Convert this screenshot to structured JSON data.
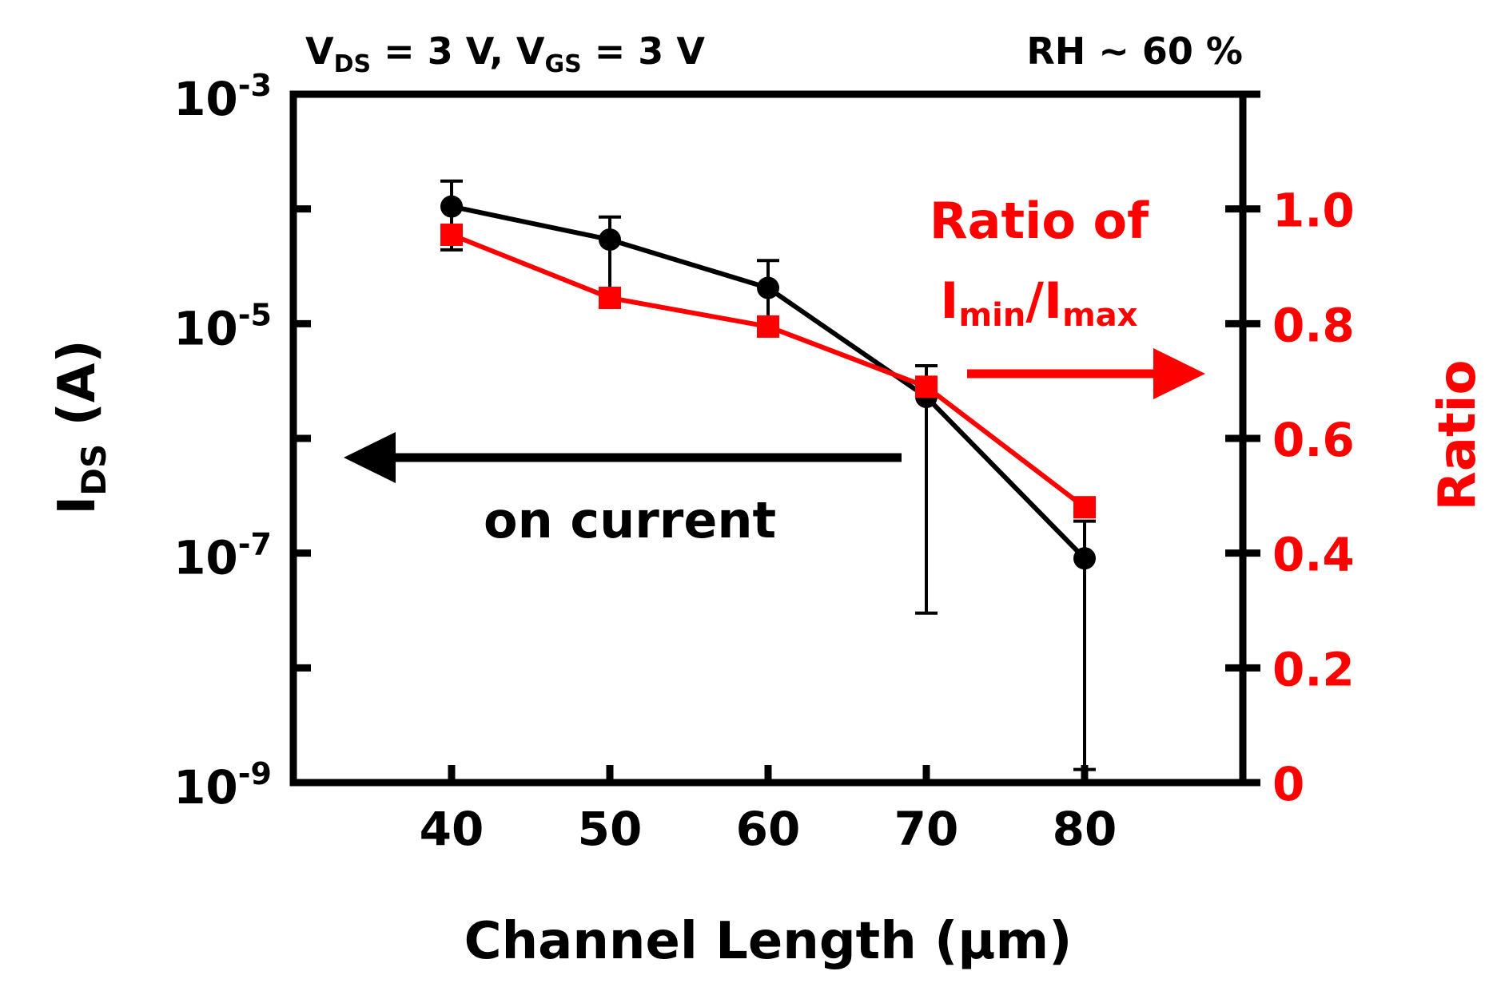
{
  "chart_data": {
    "type": "line",
    "title_left": {
      "v_ds": "V",
      "v_ds_sub": "DS",
      "v_ds_rest": " = 3 V, ",
      "v_gs": "V",
      "v_gs_sub": "GS",
      "v_gs_rest": " = 3 V"
    },
    "title_right": "RH ~ 60 %",
    "xlabel": "Channel Length (μm)",
    "ylabel_left": {
      "main": "I",
      "sub": "DS",
      "rest": " (A)"
    },
    "ylabel_right": "Ratio",
    "x_ticks": [
      "40",
      "50",
      "60",
      "70",
      "80"
    ],
    "xlim": [
      30,
      90
    ],
    "y_left_scale": "log",
    "y_left_lim": [
      1e-09,
      0.001
    ],
    "y_left_ticks": [
      {
        "base": "10",
        "exp": "-3"
      },
      {
        "base": "10",
        "exp": "-5"
      },
      {
        "base": "10",
        "exp": "-7"
      },
      {
        "base": "10",
        "exp": "-9"
      }
    ],
    "y_right_lim": [
      0,
      1.2
    ],
    "y_right_ticks": [
      "1.0",
      "0.8",
      "0.6",
      "0.4",
      "0.2",
      "0"
    ],
    "series": [
      {
        "name": "on current",
        "axis": "left",
        "color": "#000000",
        "marker": "circle",
        "x": [
          40,
          50,
          60,
          70,
          80
        ],
        "values": [
          0.000105,
          5.4e-05,
          2.05e-05,
          2.3e-06,
          9e-08
        ],
        "err_high": [
          0.000175,
          8.5e-05,
          3.55e-05,
          4.3e-06,
          1.9e-07
        ],
        "err_low": [
          4.4e-05,
          1.53e-05,
          9.3e-06,
          3e-08,
          1.3e-09
        ]
      },
      {
        "name": "Ratio of Imin/Imax",
        "axis": "right",
        "color": "#ff0000",
        "marker": "square",
        "x": [
          40,
          50,
          60,
          70,
          80
        ],
        "values": [
          0.955,
          0.845,
          0.795,
          0.69,
          0.48
        ]
      }
    ],
    "annotations": {
      "on_current_label": "on current",
      "ratio_label_line1": "Ratio of",
      "ratio_label_i1": "I",
      "ratio_label_sub1": "min",
      "ratio_label_slash": "/",
      "ratio_label_i2": "I",
      "ratio_label_sub2": "max"
    }
  }
}
